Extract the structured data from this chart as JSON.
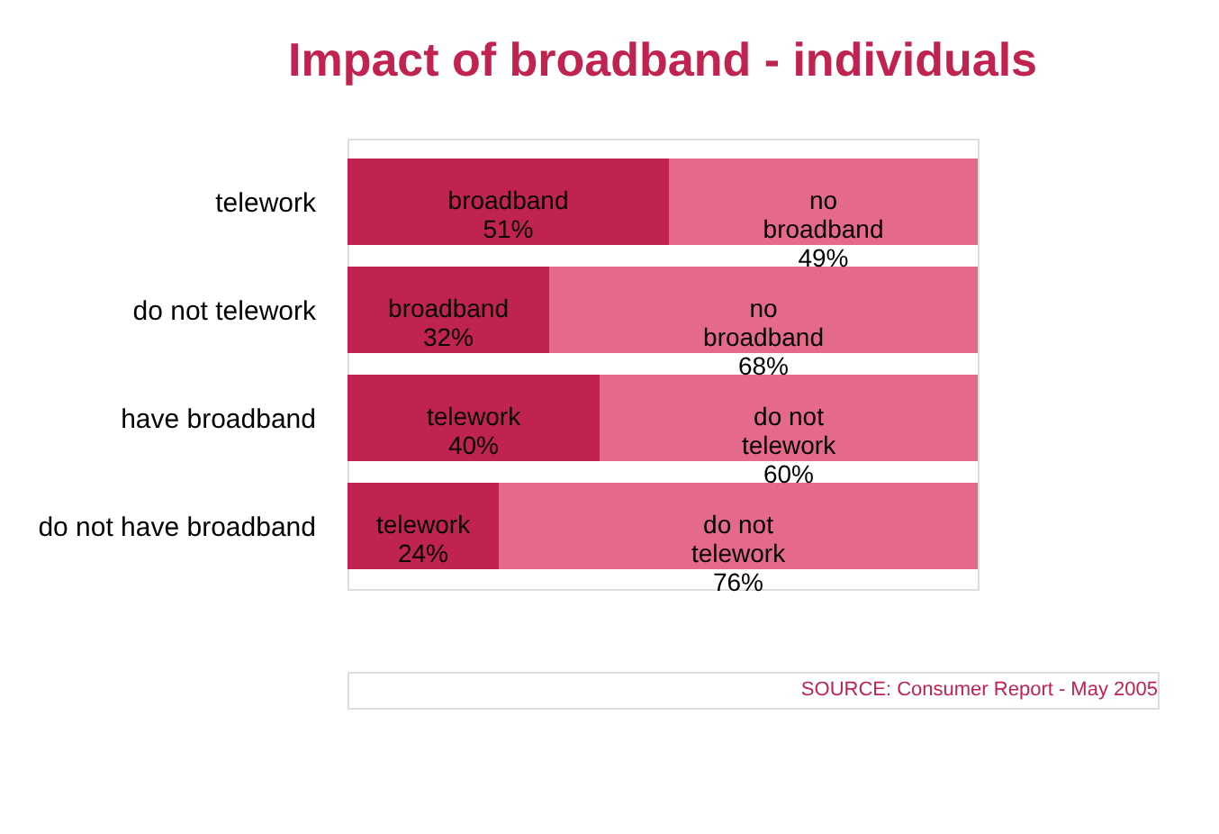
{
  "chart_data": {
    "type": "bar",
    "orientation": "horizontal",
    "stacked": true,
    "title": "Impact of broadband - individuals",
    "categories": [
      "telework",
      "do not telework",
      "have broadband",
      "do not have broadband"
    ],
    "series": [
      {
        "color": "#c0234f",
        "values": [
          51,
          32,
          40,
          24
        ],
        "value_labels": [
          "broadband\n51%",
          "broadband\n32%",
          "telework\n40%",
          "telework\n24%"
        ]
      },
      {
        "color": "#e4698a",
        "values": [
          49,
          68,
          60,
          76
        ],
        "value_labels": [
          "no\nbroadband\n49%",
          "no\nbroadband\n68%",
          "do not\ntelework\n60%",
          "do not\ntelework\n76%"
        ]
      }
    ],
    "xlim": [
      0,
      100
    ],
    "tick_labels": "y",
    "legend": false,
    "annotations": [
      "SOURCE: Consumer Report - May 2005"
    ]
  }
}
